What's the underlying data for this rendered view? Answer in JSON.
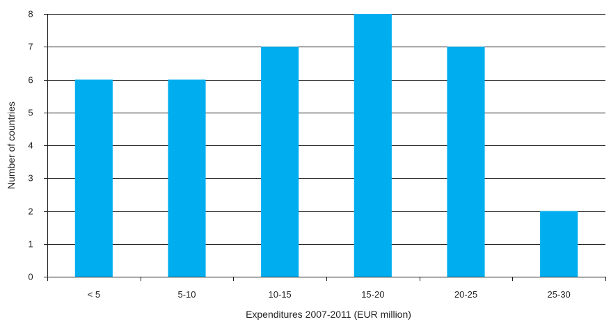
{
  "chart_data": {
    "type": "bar",
    "categories": [
      "< 5",
      "5-10",
      "10-15",
      "15-20",
      "20-25",
      "25-30"
    ],
    "values": [
      6,
      6,
      7,
      8,
      7,
      2
    ],
    "title": "",
    "xlabel": "Expenditures 2007-2011 (EUR million)",
    "ylabel": "Number of countries",
    "ylim": [
      0,
      8
    ],
    "yticks": [
      "0",
      "1",
      "2",
      "3",
      "4",
      "5",
      "6",
      "7",
      "8"
    ],
    "grid": true,
    "legend": "none",
    "bar_color": "#00AEEF",
    "grid_color": "#1a1a1a"
  }
}
